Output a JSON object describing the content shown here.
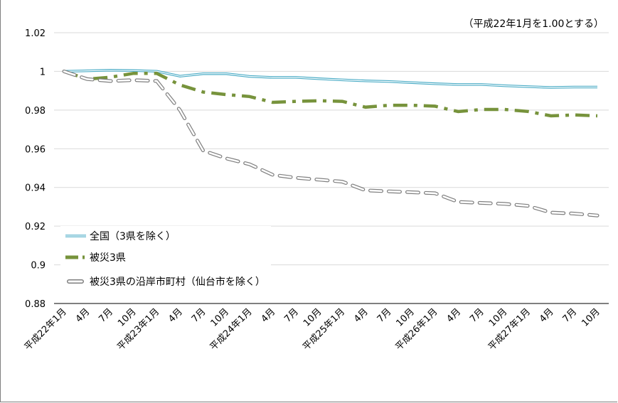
{
  "chart_data": {
    "type": "line",
    "note": "（平成22年1月を1.00とする）",
    "categories": [
      "平成22年1月",
      "4月",
      "7月",
      "10月",
      "平成23年1月",
      "4月",
      "7月",
      "10月",
      "平成24年1月",
      "4月",
      "7月",
      "10月",
      "平成25年1月",
      "4月",
      "7月",
      "10月",
      "平成26年1月",
      "4月",
      "7月",
      "10月",
      "平成27年1月",
      "4月",
      "7月",
      "10月"
    ],
    "ylim": [
      0.88,
      1.02
    ],
    "yticks": [
      "0.88",
      "0.9",
      "0.92",
      "0.94",
      "0.96",
      "0.98",
      "1",
      "1.02"
    ],
    "ytick_values": [
      0.88,
      0.9,
      0.92,
      0.94,
      0.96,
      0.98,
      1.0,
      1.02
    ],
    "grid": true,
    "legend_position": "left",
    "series": [
      {
        "name": "全国（3県を除く）",
        "color": "#4bacc6",
        "style": "double",
        "values": [
          1.0,
          1.0003,
          1.0006,
          1.0004,
          1.0001,
          0.9975,
          0.9988,
          0.9988,
          0.9974,
          0.9969,
          0.9969,
          0.9962,
          0.9956,
          0.9951,
          0.9948,
          0.9942,
          0.9936,
          0.9932,
          0.9932,
          0.9926,
          0.9921,
          0.9917,
          0.9919,
          0.9919
        ]
      },
      {
        "name": "被災3県",
        "color": "#77933c",
        "style": "dashdot",
        "values": [
          1.0,
          0.996,
          0.997,
          0.999,
          0.999,
          0.993,
          0.9893,
          0.988,
          0.987,
          0.984,
          0.9845,
          0.9848,
          0.9845,
          0.9815,
          0.9825,
          0.9825,
          0.982,
          0.9792,
          0.9803,
          0.9803,
          0.9793,
          0.977,
          0.9775,
          0.977
        ]
      },
      {
        "name": "被災3県の沿岸市町村（仙台市を除く）",
        "color": "#a6a6a6",
        "style": "outlined-dash",
        "values": [
          1.0,
          0.996,
          0.995,
          0.9955,
          0.995,
          0.98,
          0.959,
          0.955,
          0.952,
          0.9465,
          0.945,
          0.944,
          0.943,
          0.9385,
          0.938,
          0.9375,
          0.937,
          0.9325,
          0.932,
          0.9315,
          0.9305,
          0.927,
          0.9265,
          0.9255
        ]
      }
    ]
  }
}
